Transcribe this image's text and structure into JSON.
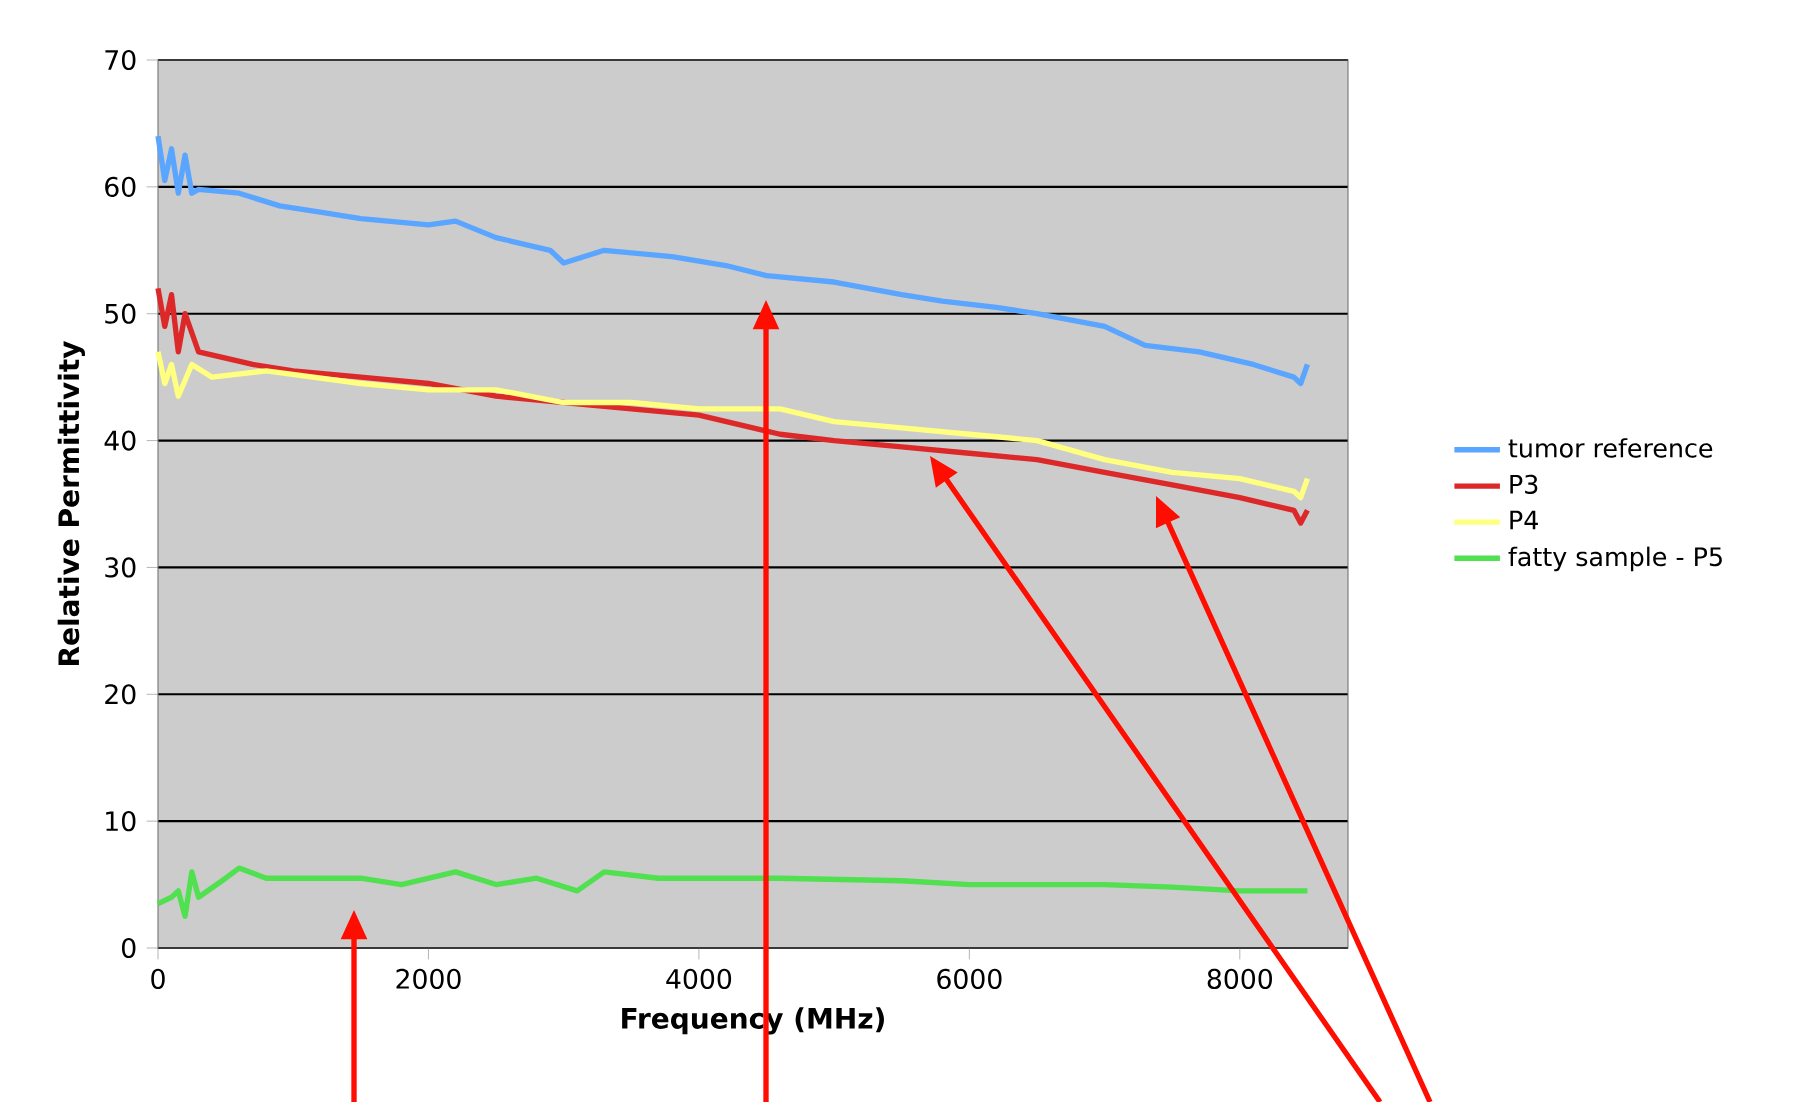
{
  "chart_data": {
    "type": "line",
    "xlabel": "Frequency (MHz)",
    "ylabel": "Relative Permittivity",
    "xlim": [
      0,
      8800
    ],
    "ylim": [
      0,
      70
    ],
    "xticks": [
      0,
      2000,
      4000,
      6000,
      8000
    ],
    "yticks": [
      0,
      10,
      20,
      30,
      40,
      50,
      60,
      70
    ],
    "grid": "y",
    "legend": "right",
    "marker": "none",
    "line_style": "solid",
    "series": [
      {
        "name": "tumor reference",
        "color": "#5aa5ff",
        "x": [
          0,
          50,
          100,
          150,
          200,
          250,
          300,
          600,
          900,
          1200,
          1500,
          2000,
          2200,
          2500,
          2900,
          3000,
          3300,
          3800,
          4200,
          4500,
          5000,
          5500,
          5800,
          6200,
          6500,
          7000,
          7300,
          7700,
          8100,
          8400,
          8450,
          8500
        ],
        "values": [
          64,
          60.5,
          63,
          59.5,
          62.5,
          59.5,
          59.8,
          59.5,
          58.5,
          58,
          57.5,
          57,
          57.3,
          56,
          55,
          54,
          55,
          54.5,
          53.8,
          53,
          52.5,
          51.5,
          51,
          50.5,
          50,
          49,
          47.5,
          47,
          46,
          45,
          44.5,
          46
        ]
      },
      {
        "name": "P3",
        "color": "#dc2828",
        "x": [
          0,
          50,
          100,
          150,
          200,
          300,
          700,
          1000,
          1500,
          2000,
          2500,
          3000,
          3500,
          4000,
          4600,
          5000,
          5500,
          6000,
          6500,
          7000,
          7500,
          8000,
          8400,
          8450,
          8500
        ],
        "values": [
          52,
          49,
          51.5,
          47,
          50,
          47,
          46,
          45.5,
          45,
          44.5,
          43.5,
          43,
          42.5,
          42,
          40.5,
          40,
          39.5,
          39,
          38.5,
          37.5,
          36.5,
          35.5,
          34.5,
          33.5,
          34.5
        ]
      },
      {
        "name": "P4",
        "color": "#ffff80",
        "x": [
          0,
          50,
          100,
          150,
          250,
          400,
          800,
          1500,
          2000,
          2500,
          3000,
          3500,
          4000,
          4600,
          5000,
          5500,
          6000,
          6500,
          7000,
          7500,
          8000,
          8400,
          8450,
          8500
        ],
        "values": [
          47,
          44.5,
          46,
          43.5,
          46,
          45,
          45.5,
          44.5,
          44,
          44,
          43,
          43,
          42.5,
          42.5,
          41.5,
          41,
          40.5,
          40,
          38.5,
          37.5,
          37,
          36,
          35.5,
          37
        ]
      },
      {
        "name": "fatty sample - P5",
        "color": "#50e050",
        "x": [
          0,
          100,
          150,
          200,
          250,
          300,
          500,
          600,
          800,
          1500,
          1800,
          2200,
          2500,
          2800,
          3100,
          3300,
          3700,
          4600,
          5500,
          6000,
          7000,
          7500,
          8000,
          8500
        ],
        "values": [
          3.5,
          4,
          4.5,
          2.5,
          6,
          4,
          5.5,
          6.3,
          5.5,
          5.5,
          5,
          6,
          5,
          5.5,
          4.5,
          6,
          5.5,
          5.5,
          5.3,
          5,
          5,
          4.8,
          4.5,
          4.5
        ]
      }
    ]
  }
}
